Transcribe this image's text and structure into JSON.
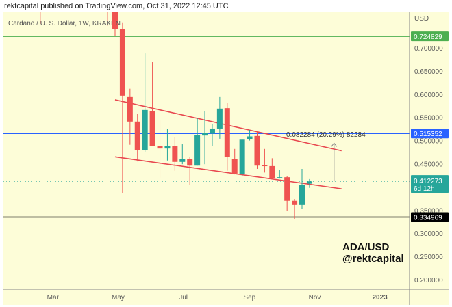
{
  "header": {
    "published": "rektcapital published on TradingView.com, Oct 31, 2022 12:45 UTC"
  },
  "chart_data": {
    "type": "candlestick",
    "title": "Cardano / U. S. Dollar, 1W, KRAKEN",
    "currency_label": "USD",
    "watermark": [
      "ADA/USD",
      "@rektcapital"
    ],
    "ylim": [
      0.17,
      0.78
    ],
    "y_ticks": [
      "0.200000",
      "0.250000",
      "0.300000",
      "0.350000",
      "0.450000",
      "0.500000",
      "0.550000",
      "0.600000",
      "0.650000",
      "0.700000"
    ],
    "x_ticks": [
      {
        "label": "Mar",
        "date": "2022-03-01"
      },
      {
        "label": "May",
        "date": "2022-05-01"
      },
      {
        "label": "Jul",
        "date": "2022-07-01"
      },
      {
        "label": "Sep",
        "date": "2022-09-01"
      },
      {
        "label": "Nov",
        "date": "2022-11-01"
      },
      {
        "label": "2023",
        "date": "2023-01-01"
      }
    ],
    "colors": {
      "up": "#26a69a",
      "down": "#ef5350",
      "background": "#fdfdd8",
      "trendline": "#e8474f"
    },
    "candles": [
      {
        "date": "2022-02-21",
        "o": 0.95,
        "h": 0.98,
        "l": 0.752,
        "c": 0.8
      },
      {
        "date": "2022-04-25",
        "o": 0.95,
        "h": 0.97,
        "l": 0.748,
        "c": 0.8
      },
      {
        "date": "2022-05-02",
        "o": 0.8,
        "h": 0.82,
        "l": 0.725,
        "c": 0.741
      },
      {
        "date": "2022-05-09",
        "o": 0.741,
        "h": 0.755,
        "l": 0.386,
        "c": 0.597
      },
      {
        "date": "2022-05-16",
        "o": 0.594,
        "h": 0.612,
        "l": 0.491,
        "c": 0.541
      },
      {
        "date": "2022-05-23",
        "o": 0.541,
        "h": 0.557,
        "l": 0.455,
        "c": 0.48
      },
      {
        "date": "2022-05-30",
        "o": 0.48,
        "h": 0.688,
        "l": 0.476,
        "c": 0.566
      },
      {
        "date": "2022-06-06",
        "o": 0.564,
        "h": 0.669,
        "l": 0.489,
        "c": 0.489
      },
      {
        "date": "2022-06-13",
        "o": 0.489,
        "h": 0.545,
        "l": 0.42,
        "c": 0.483
      },
      {
        "date": "2022-06-20",
        "o": 0.483,
        "h": 0.525,
        "l": 0.457,
        "c": 0.489
      },
      {
        "date": "2022-06-27",
        "o": 0.489,
        "h": 0.508,
        "l": 0.435,
        "c": 0.454
      },
      {
        "date": "2022-07-04",
        "o": 0.454,
        "h": 0.492,
        "l": 0.449,
        "c": 0.461
      },
      {
        "date": "2022-07-11",
        "o": 0.461,
        "h": 0.464,
        "l": 0.405,
        "c": 0.446
      },
      {
        "date": "2022-07-18",
        "o": 0.446,
        "h": 0.548,
        "l": 0.446,
        "c": 0.512
      },
      {
        "date": "2022-07-25",
        "o": 0.511,
        "h": 0.563,
        "l": 0.449,
        "c": 0.516
      },
      {
        "date": "2022-08-01",
        "o": 0.515,
        "h": 0.535,
        "l": 0.489,
        "c": 0.526
      },
      {
        "date": "2022-08-08",
        "o": 0.526,
        "h": 0.594,
        "l": 0.504,
        "c": 0.569
      },
      {
        "date": "2022-08-15",
        "o": 0.57,
        "h": 0.582,
        "l": 0.435,
        "c": 0.464
      },
      {
        "date": "2022-08-22",
        "o": 0.461,
        "h": 0.482,
        "l": 0.427,
        "c": 0.429
      },
      {
        "date": "2022-08-29",
        "o": 0.427,
        "h": 0.503,
        "l": 0.424,
        "c": 0.502
      },
      {
        "date": "2022-09-05",
        "o": 0.503,
        "h": 0.523,
        "l": 0.5,
        "c": 0.509
      },
      {
        "date": "2022-09-12",
        "o": 0.51,
        "h": 0.52,
        "l": 0.439,
        "c": 0.446
      },
      {
        "date": "2022-09-19",
        "o": 0.447,
        "h": 0.482,
        "l": 0.431,
        "c": 0.445
      },
      {
        "date": "2022-09-26",
        "o": 0.445,
        "h": 0.462,
        "l": 0.418,
        "c": 0.419
      },
      {
        "date": "2022-10-03",
        "o": 0.419,
        "h": 0.437,
        "l": 0.418,
        "c": 0.421
      },
      {
        "date": "2022-10-10",
        "o": 0.421,
        "h": 0.423,
        "l": 0.349,
        "c": 0.37
      },
      {
        "date": "2022-10-17",
        "o": 0.37,
        "h": 0.374,
        "l": 0.331,
        "c": 0.361
      },
      {
        "date": "2022-10-24",
        "o": 0.361,
        "h": 0.439,
        "l": 0.353,
        "c": 0.405
      },
      {
        "date": "2022-10-31",
        "o": 0.407,
        "h": 0.417,
        "l": 0.398,
        "c": 0.412
      }
    ],
    "horizontal_levels": [
      {
        "price": 0.724829,
        "label": "0.724829",
        "color": "#4caf50"
      },
      {
        "price": 0.515352,
        "label": "0.515352",
        "color": "#2962ff"
      },
      {
        "price": 0.334969,
        "label": "0.334969",
        "color": "#000000"
      }
    ],
    "current_price": {
      "price": 0.412273,
      "label": "0.412273",
      "countdown": "6d 12h",
      "color": "#26a69a"
    },
    "trendlines": [
      {
        "from": {
          "date": "2022-05-02",
          "price": 0.588
        },
        "to": {
          "date": "2022-11-30",
          "price": 0.478
        }
      },
      {
        "from": {
          "date": "2022-05-02",
          "price": 0.465
        },
        "to": {
          "date": "2022-11-30",
          "price": 0.396
        }
      }
    ],
    "measure": {
      "from": {
        "date": "2022-11-23",
        "price": 0.412
      },
      "to": {
        "date": "2022-11-23",
        "price": 0.4945
      },
      "label": "0.082284 (20.29%) 82284"
    }
  }
}
